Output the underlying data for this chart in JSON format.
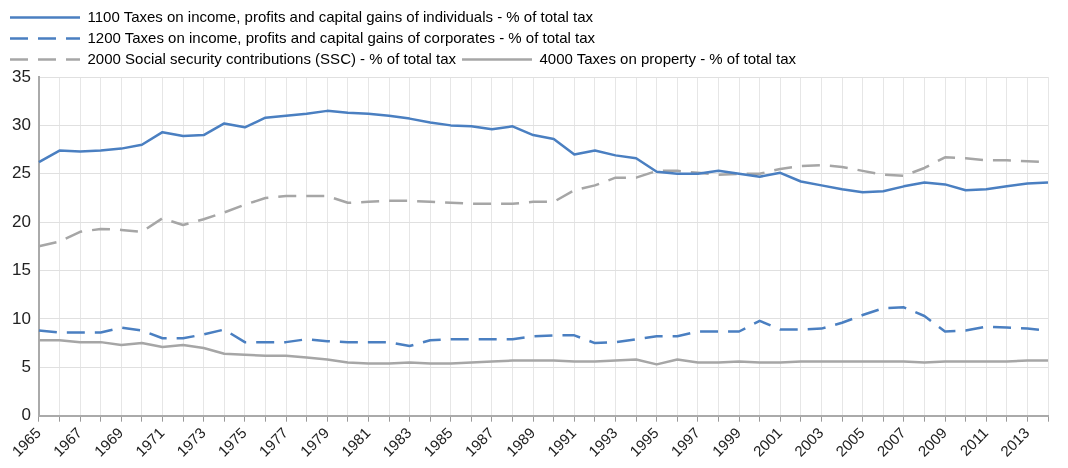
{
  "chart_data": {
    "type": "line",
    "categories": [
      "1965",
      null,
      "1967",
      null,
      "1969",
      null,
      "1971",
      null,
      "1973",
      null,
      "1975",
      null,
      "1977",
      null,
      "1979",
      null,
      "1981",
      null,
      "1983",
      null,
      "1985",
      null,
      "1987",
      null,
      "1989",
      null,
      "1991",
      null,
      "1993",
      null,
      "1995",
      null,
      "1997",
      null,
      "1999",
      null,
      "2001",
      null,
      "2003",
      null,
      "2005",
      null,
      "2007",
      null,
      "2009",
      null,
      "2011",
      null,
      "2013",
      null
    ],
    "series": [
      {
        "name": "1100 Taxes on income, profits and capital gains of individuals - % of total tax",
        "color": "#4a7fc1",
        "line_style": "solid",
        "values": [
          26.2,
          27.4,
          27.3,
          27.4,
          27.6,
          28.0,
          29.3,
          28.9,
          29.0,
          30.2,
          29.8,
          30.8,
          31.0,
          31.2,
          31.5,
          31.3,
          31.2,
          31.0,
          30.7,
          30.3,
          30.0,
          29.9,
          29.6,
          29.9,
          29.0,
          28.6,
          27.0,
          27.4,
          26.9,
          26.6,
          25.2,
          25.0,
          25.0,
          25.3,
          25.0,
          24.7,
          25.1,
          24.2,
          23.8,
          23.4,
          23.1,
          23.2,
          23.7,
          24.1,
          23.9,
          23.3,
          23.4,
          23.7,
          24.0,
          24.1
        ]
      },
      {
        "name": "1200 Taxes on income, profits and capital gains of corporates - % of total tax",
        "color": "#4a7fc1",
        "line_style": "dashed",
        "values": [
          8.8,
          8.6,
          8.6,
          8.6,
          9.1,
          8.8,
          8.0,
          8.0,
          8.4,
          8.9,
          7.6,
          7.6,
          7.6,
          7.9,
          7.7,
          7.6,
          7.6,
          7.6,
          7.2,
          7.8,
          7.9,
          7.9,
          7.9,
          7.9,
          8.2,
          8.3,
          8.3,
          7.5,
          7.6,
          7.9,
          8.2,
          8.2,
          8.7,
          8.7,
          8.7,
          9.8,
          8.9,
          8.9,
          9.0,
          9.6,
          10.4,
          11.1,
          11.2,
          10.3,
          8.7,
          8.8,
          9.2,
          9.1,
          9.0,
          8.8
        ]
      },
      {
        "name": "2000 Social security contributions (SSC) - % of total tax",
        "color": "#a6a6a6",
        "line_style": "dashed",
        "values": [
          17.5,
          18.0,
          19.0,
          19.3,
          19.2,
          19.0,
          20.4,
          19.7,
          20.3,
          21.0,
          21.8,
          22.5,
          22.7,
          22.7,
          22.7,
          22.0,
          22.1,
          22.2,
          22.2,
          22.1,
          22.0,
          21.9,
          21.9,
          21.9,
          22.1,
          22.1,
          23.3,
          23.8,
          24.6,
          24.6,
          25.3,
          25.3,
          25.1,
          24.9,
          25.0,
          25.0,
          25.5,
          25.8,
          25.9,
          25.7,
          25.3,
          24.9,
          24.8,
          25.6,
          26.7,
          26.6,
          26.4,
          26.4,
          26.3,
          26.2
        ]
      },
      {
        "name": "4000 Taxes on property - % of total tax",
        "color": "#a6a6a6",
        "line_style": "solid",
        "values": [
          7.8,
          7.8,
          7.6,
          7.6,
          7.3,
          7.5,
          7.1,
          7.3,
          7.0,
          6.4,
          6.3,
          6.2,
          6.2,
          6.0,
          5.8,
          5.5,
          5.4,
          5.4,
          5.5,
          5.4,
          5.4,
          5.5,
          5.6,
          5.7,
          5.7,
          5.7,
          5.6,
          5.6,
          5.7,
          5.8,
          5.3,
          5.8,
          5.5,
          5.5,
          5.6,
          5.5,
          5.5,
          5.6,
          5.6,
          5.6,
          5.6,
          5.6,
          5.6,
          5.5,
          5.6,
          5.6,
          5.6,
          5.6,
          5.7,
          5.7
        ]
      }
    ],
    "ylim": [
      0,
      35
    ],
    "yticks": [
      0,
      5,
      10,
      15,
      20,
      25,
      30,
      35
    ],
    "grid": true,
    "legend": "top",
    "marker": "none"
  }
}
